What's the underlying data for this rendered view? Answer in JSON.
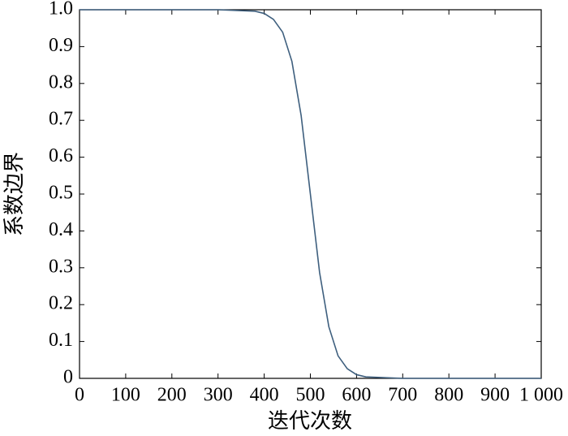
{
  "chart_data": {
    "type": "line",
    "x_label": "迭代次数",
    "y_label": "系数边界",
    "x": [
      0,
      100,
      200,
      300,
      380,
      400,
      420,
      440,
      460,
      480,
      500,
      520,
      540,
      560,
      580,
      600,
      620,
      700,
      800,
      900,
      1000
    ],
    "series": [
      {
        "name": "系数边界",
        "color": "#3e5f7e",
        "values": [
          1,
          1,
          1,
          1,
          0.996,
          0.99,
          0.974,
          0.939,
          0.86,
          0.713,
          0.5,
          0.287,
          0.14,
          0.061,
          0.026,
          0.01,
          0.004,
          0,
          0,
          0,
          0
        ]
      }
    ],
    "xlim": [
      0,
      1000
    ],
    "xticks": [
      0,
      100,
      200,
      300,
      400,
      500,
      600,
      700,
      800,
      900,
      {
        "value": 1000,
        "label": "1 000"
      }
    ],
    "ylim": [
      0,
      1
    ],
    "yticks": [
      0,
      0.1,
      0.2,
      0.3,
      0.4,
      0.5,
      0.6,
      0.7,
      0.8,
      0.9,
      {
        "value": 1,
        "label": "1.0"
      }
    ],
    "grid": false
  }
}
